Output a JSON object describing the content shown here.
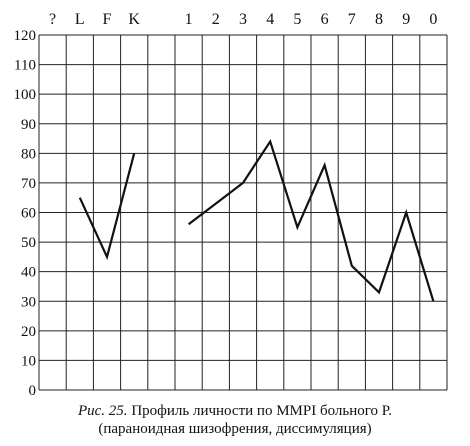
{
  "chart_data": {
    "type": "line",
    "x_labels": [
      "?",
      "L",
      "F",
      "K",
      "",
      "1",
      "2",
      "3",
      "4",
      "5",
      "6",
      "7",
      "8",
      "9",
      "0"
    ],
    "y_ticks": [
      0,
      10,
      20,
      30,
      40,
      50,
      60,
      70,
      80,
      90,
      100,
      110,
      120
    ],
    "ylim": [
      0,
      120
    ],
    "grid": true,
    "segments": [
      {
        "x": [
          "L",
          "F",
          "K"
        ],
        "y": [
          65,
          45,
          80
        ]
      },
      {
        "x": [
          "1",
          "2",
          "3",
          "4",
          "5",
          "6",
          "7",
          "8",
          "9",
          "0"
        ],
        "y": [
          56,
          63,
          70,
          84,
          55,
          76,
          42,
          33,
          60,
          30
        ]
      }
    ],
    "caption_label": "Рис. 25.",
    "caption_line1": "Профиль личности по MMPI больного Р.",
    "caption_line2": "(параноидная шизофрения, диссимуляция)"
  }
}
